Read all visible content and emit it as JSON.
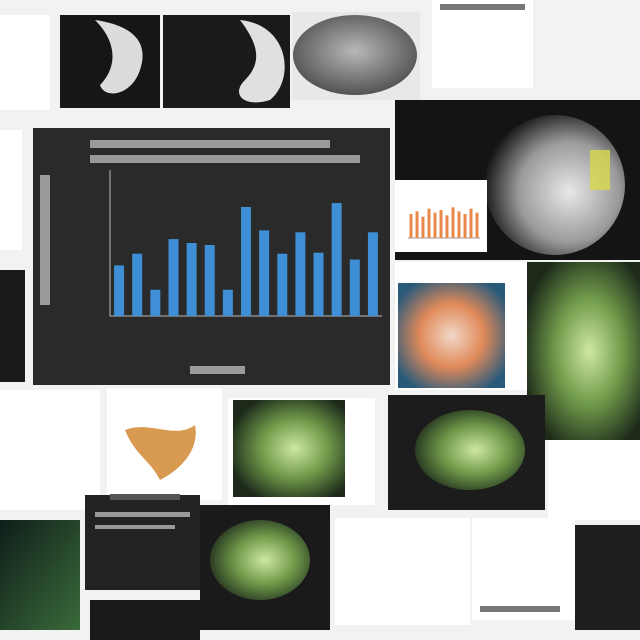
{
  "center_chart": {
    "type": "bar",
    "values": [
      52,
      64,
      27,
      79,
      75,
      73,
      27,
      112,
      88,
      64,
      86,
      65,
      116,
      58,
      86
    ],
    "color": "#3f8fd6",
    "ylim": [
      0,
      150
    ]
  },
  "thumb_chart": {
    "type": "bar",
    "values": [
      18,
      20,
      16,
      22,
      19,
      21,
      17,
      23,
      20,
      18,
      22,
      19
    ],
    "color": "#e8894a",
    "ylim": [
      0,
      30
    ]
  }
}
